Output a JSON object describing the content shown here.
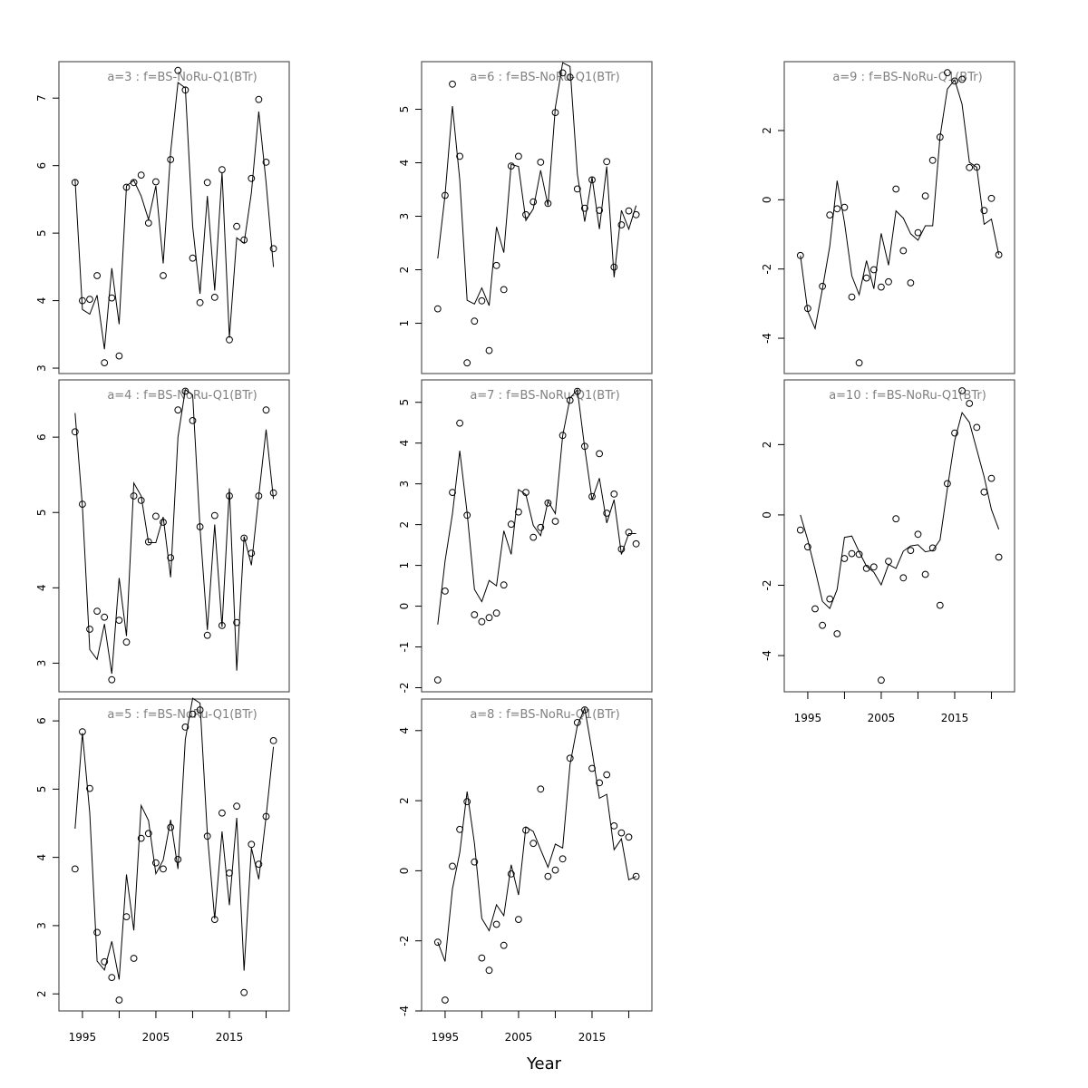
{
  "xlabel": "Year",
  "years": [
    1994,
    1995,
    1996,
    1997,
    1998,
    1999,
    2000,
    2001,
    2002,
    2003,
    2004,
    2005,
    2006,
    2007,
    2008,
    2009,
    2010,
    2011,
    2012,
    2013,
    2014,
    2015,
    2016,
    2017,
    2018,
    2019,
    2020,
    2021
  ],
  "x_ticks": [
    1995,
    2000,
    2005,
    2010,
    2015,
    2020
  ],
  "x_tick_labels": [
    "1995",
    "2005",
    "2015"
  ],
  "chart_data": [
    {
      "type": "line",
      "title": "a=3  :  f=BS-NoRu-Q1(BTr)",
      "ylim": [
        2.92,
        7.54
      ],
      "xlim": [
        1991.8,
        2023.15
      ],
      "y_ticks": [
        3,
        4,
        5,
        6,
        7
      ],
      "show_x_axis": false,
      "observed": [
        5.75,
        4.0,
        4.02,
        4.37,
        3.08,
        4.04,
        3.18,
        5.68,
        5.75,
        5.86,
        5.15,
        5.76,
        4.37,
        6.09,
        7.41,
        7.12,
        4.63,
        3.97,
        5.75,
        4.05,
        5.94,
        3.42,
        5.1,
        4.9,
        5.81,
        6.98,
        6.05,
        4.77
      ],
      "fitted": [
        5.8,
        3.87,
        3.8,
        4.08,
        3.28,
        4.48,
        3.65,
        5.7,
        5.78,
        5.55,
        5.2,
        5.7,
        4.55,
        6.2,
        7.23,
        7.15,
        5.1,
        4.1,
        5.55,
        4.15,
        5.9,
        3.45,
        4.93,
        4.85,
        5.6,
        6.8,
        5.75,
        4.5
      ]
    },
    {
      "type": "line",
      "title": "a=4  :  f=BS-NoRu-Q1(BTr)",
      "ylim": [
        2.62,
        6.76
      ],
      "xlim": [
        1991.8,
        2023.15
      ],
      "y_ticks": [
        3,
        4,
        5,
        6
      ],
      "show_x_axis": false,
      "observed": [
        6.07,
        5.11,
        3.45,
        3.69,
        3.61,
        2.78,
        3.57,
        3.28,
        5.22,
        5.16,
        4.61,
        4.95,
        4.87,
        4.4,
        6.36,
        6.61,
        6.22,
        4.81,
        3.37,
        4.96,
        3.5,
        5.22,
        3.54,
        4.66,
        4.46,
        5.22,
        6.36,
        5.26
      ],
      "fitted": [
        6.32,
        5.08,
        3.18,
        3.05,
        3.52,
        2.86,
        4.13,
        3.36,
        5.39,
        5.22,
        4.6,
        4.6,
        4.94,
        4.14,
        6.0,
        6.63,
        6.56,
        4.8,
        3.44,
        4.84,
        3.48,
        5.32,
        2.9,
        4.68,
        4.3,
        5.22,
        6.1,
        5.18
      ]
    },
    {
      "type": "line",
      "title": "a=5  :  f=BS-NoRu-Q1(BTr)",
      "ylim": [
        1.75,
        6.32
      ],
      "xlim": [
        1991.8,
        2023.15
      ],
      "y_ticks": [
        2,
        3,
        4,
        5,
        6
      ],
      "show_x_axis": true,
      "observed": [
        3.83,
        5.84,
        5.01,
        2.9,
        2.47,
        2.24,
        1.91,
        3.13,
        2.52,
        4.28,
        4.35,
        3.92,
        3.83,
        4.44,
        3.97,
        5.91,
        6.1,
        6.16,
        4.31,
        3.09,
        4.65,
        3.77,
        4.75,
        2.02,
        4.19,
        3.9,
        4.6,
        5.71
      ],
      "fitted": [
        4.42,
        5.82,
        4.65,
        2.48,
        2.35,
        2.77,
        2.21,
        3.75,
        2.93,
        4.76,
        4.54,
        3.76,
        3.96,
        4.55,
        3.83,
        5.73,
        6.33,
        6.26,
        4.34,
        3.1,
        4.38,
        3.3,
        4.58,
        2.34,
        4.14,
        3.68,
        4.6,
        5.62
      ]
    },
    {
      "type": "line",
      "title": "a=6  :  f=BS-NoRu-Q1(BTr)",
      "ylim": [
        0.06,
        5.89
      ],
      "xlim": [
        1991.8,
        2023.15
      ],
      "y_ticks": [
        1,
        2,
        3,
        4,
        5
      ],
      "show_x_axis": false,
      "observed": [
        1.27,
        3.39,
        5.47,
        4.12,
        0.26,
        1.04,
        1.42,
        0.49,
        2.08,
        1.63,
        3.94,
        4.12,
        3.03,
        3.27,
        4.01,
        3.24,
        4.94,
        5.68,
        5.6,
        3.51,
        3.15,
        3.68,
        3.11,
        4.02,
        2.05,
        2.84,
        3.1,
        3.03
      ],
      "fitted": [
        2.21,
        3.4,
        5.06,
        3.68,
        1.43,
        1.36,
        1.66,
        1.33,
        2.8,
        2.32,
        3.97,
        3.93,
        2.92,
        3.14,
        3.86,
        3.2,
        5.03,
        5.87,
        5.8,
        3.79,
        2.9,
        3.73,
        2.76,
        3.93,
        1.86,
        3.11,
        2.76,
        3.2
      ]
    },
    {
      "type": "line",
      "title": "a=7  :  f=BS-NoRu-Q1(BTr)",
      "ylim": [
        -2.1,
        5.55
      ],
      "xlim": [
        1991.8,
        2023.15
      ],
      "y_ticks": [
        -2,
        -1,
        0,
        1,
        2,
        3,
        4,
        5
      ],
      "show_x_axis": false,
      "observed": [
        -1.81,
        0.37,
        2.79,
        4.49,
        2.23,
        -0.21,
        -0.38,
        -0.28,
        -0.17,
        0.52,
        2.01,
        2.31,
        2.79,
        1.69,
        1.93,
        2.53,
        2.08,
        4.19,
        5.05,
        5.27,
        3.92,
        2.69,
        3.74,
        2.28,
        2.75,
        1.4,
        1.81,
        1.53
      ],
      "fitted": [
        -0.45,
        1.11,
        2.26,
        3.81,
        2.29,
        0.41,
        0.11,
        0.63,
        0.5,
        1.85,
        1.27,
        2.86,
        2.74,
        1.98,
        1.73,
        2.58,
        2.27,
        4.18,
        5.1,
        5.31,
        3.88,
        2.61,
        3.14,
        2.04,
        2.61,
        1.27,
        1.78,
        1.78
      ]
    },
    {
      "type": "line",
      "title": "a=8  :  f=BS-NoRu-Q1(BTr)",
      "ylim": [
        -4.0,
        4.9
      ],
      "xlim": [
        1991.8,
        2023.15
      ],
      "y_ticks": [
        -4,
        -2,
        0,
        2,
        4
      ],
      "show_x_axis": true,
      "observed": [
        -2.04,
        -3.69,
        0.13,
        1.18,
        1.97,
        0.25,
        -2.49,
        -2.84,
        -1.53,
        -2.13,
        -0.09,
        -1.39,
        1.16,
        0.78,
        2.33,
        -0.16,
        0.02,
        0.34,
        3.21,
        4.23,
        4.59,
        2.92,
        2.51,
        2.74,
        1.28,
        1.08,
        0.96,
        -0.16
      ],
      "fitted": [
        -2.03,
        -2.59,
        -0.52,
        0.52,
        2.26,
        0.78,
        -1.36,
        -1.71,
        -0.97,
        -1.28,
        0.17,
        -0.69,
        1.25,
        1.12,
        0.6,
        0.1,
        0.76,
        0.65,
        3.03,
        4.14,
        4.64,
        3.41,
        2.07,
        2.18,
        0.6,
        0.91,
        -0.26,
        -0.16
      ]
    },
    {
      "type": "line",
      "title": "a=9  :  f=BS-NoRu-Q1(BTr)",
      "ylim": [
        -5.02,
        3.99
      ],
      "xlim": [
        1991.8,
        2023.15
      ],
      "y_ticks": [
        -4,
        -2,
        0,
        2
      ],
      "show_x_axis": false,
      "observed": [
        -1.61,
        -3.14,
        null,
        -2.5,
        -0.44,
        -0.26,
        -0.22,
        -2.81,
        -4.71,
        -2.26,
        -2.02,
        -2.52,
        -2.37,
        0.31,
        -1.47,
        -2.4,
        -0.95,
        0.11,
        1.14,
        1.81,
        3.67,
        3.43,
        3.48,
        0.93,
        0.94,
        -0.31,
        0.04,
        -1.59
      ],
      "fitted": [
        -1.61,
        -3.22,
        -3.72,
        -2.57,
        -1.34,
        0.55,
        -0.65,
        -2.2,
        -2.74,
        -1.76,
        -2.57,
        -0.97,
        -1.89,
        -0.32,
        -0.53,
        -0.98,
        -1.17,
        -0.75,
        -0.75,
        1.82,
        3.2,
        3.46,
        2.76,
        1.08,
        0.94,
        -0.71,
        -0.56,
        -1.59
      ]
    },
    {
      "type": "line",
      "title": "a=10  :  f=BS-NoRu-Q1(BTr)",
      "ylim": [
        -5.03,
        3.84
      ],
      "xlim": [
        1991.8,
        2023.15
      ],
      "y_ticks": [
        -4,
        -2,
        0,
        2
      ],
      "show_x_axis": true,
      "observed": [
        -0.43,
        -0.91,
        -2.67,
        -3.14,
        -2.39,
        -3.38,
        -1.24,
        -1.1,
        -1.12,
        -1.52,
        -1.48,
        -4.7,
        -1.32,
        -0.11,
        -1.79,
        -1.01,
        -0.55,
        -1.69,
        -0.94,
        -2.57,
        0.89,
        2.33,
        3.53,
        3.17,
        2.49,
        0.65,
        1.04,
        -1.2
      ],
      "fitted": [
        0.0,
        -0.71,
        -1.56,
        -2.46,
        -2.66,
        -2.12,
        -0.64,
        -0.6,
        -1.05,
        -1.46,
        -1.63,
        -1.99,
        -1.41,
        -1.52,
        -1.03,
        -0.88,
        -0.85,
        -1.05,
        -1.01,
        -0.71,
        0.75,
        2.12,
        2.91,
        2.63,
        1.86,
        1.09,
        0.15,
        -0.41
      ]
    }
  ]
}
